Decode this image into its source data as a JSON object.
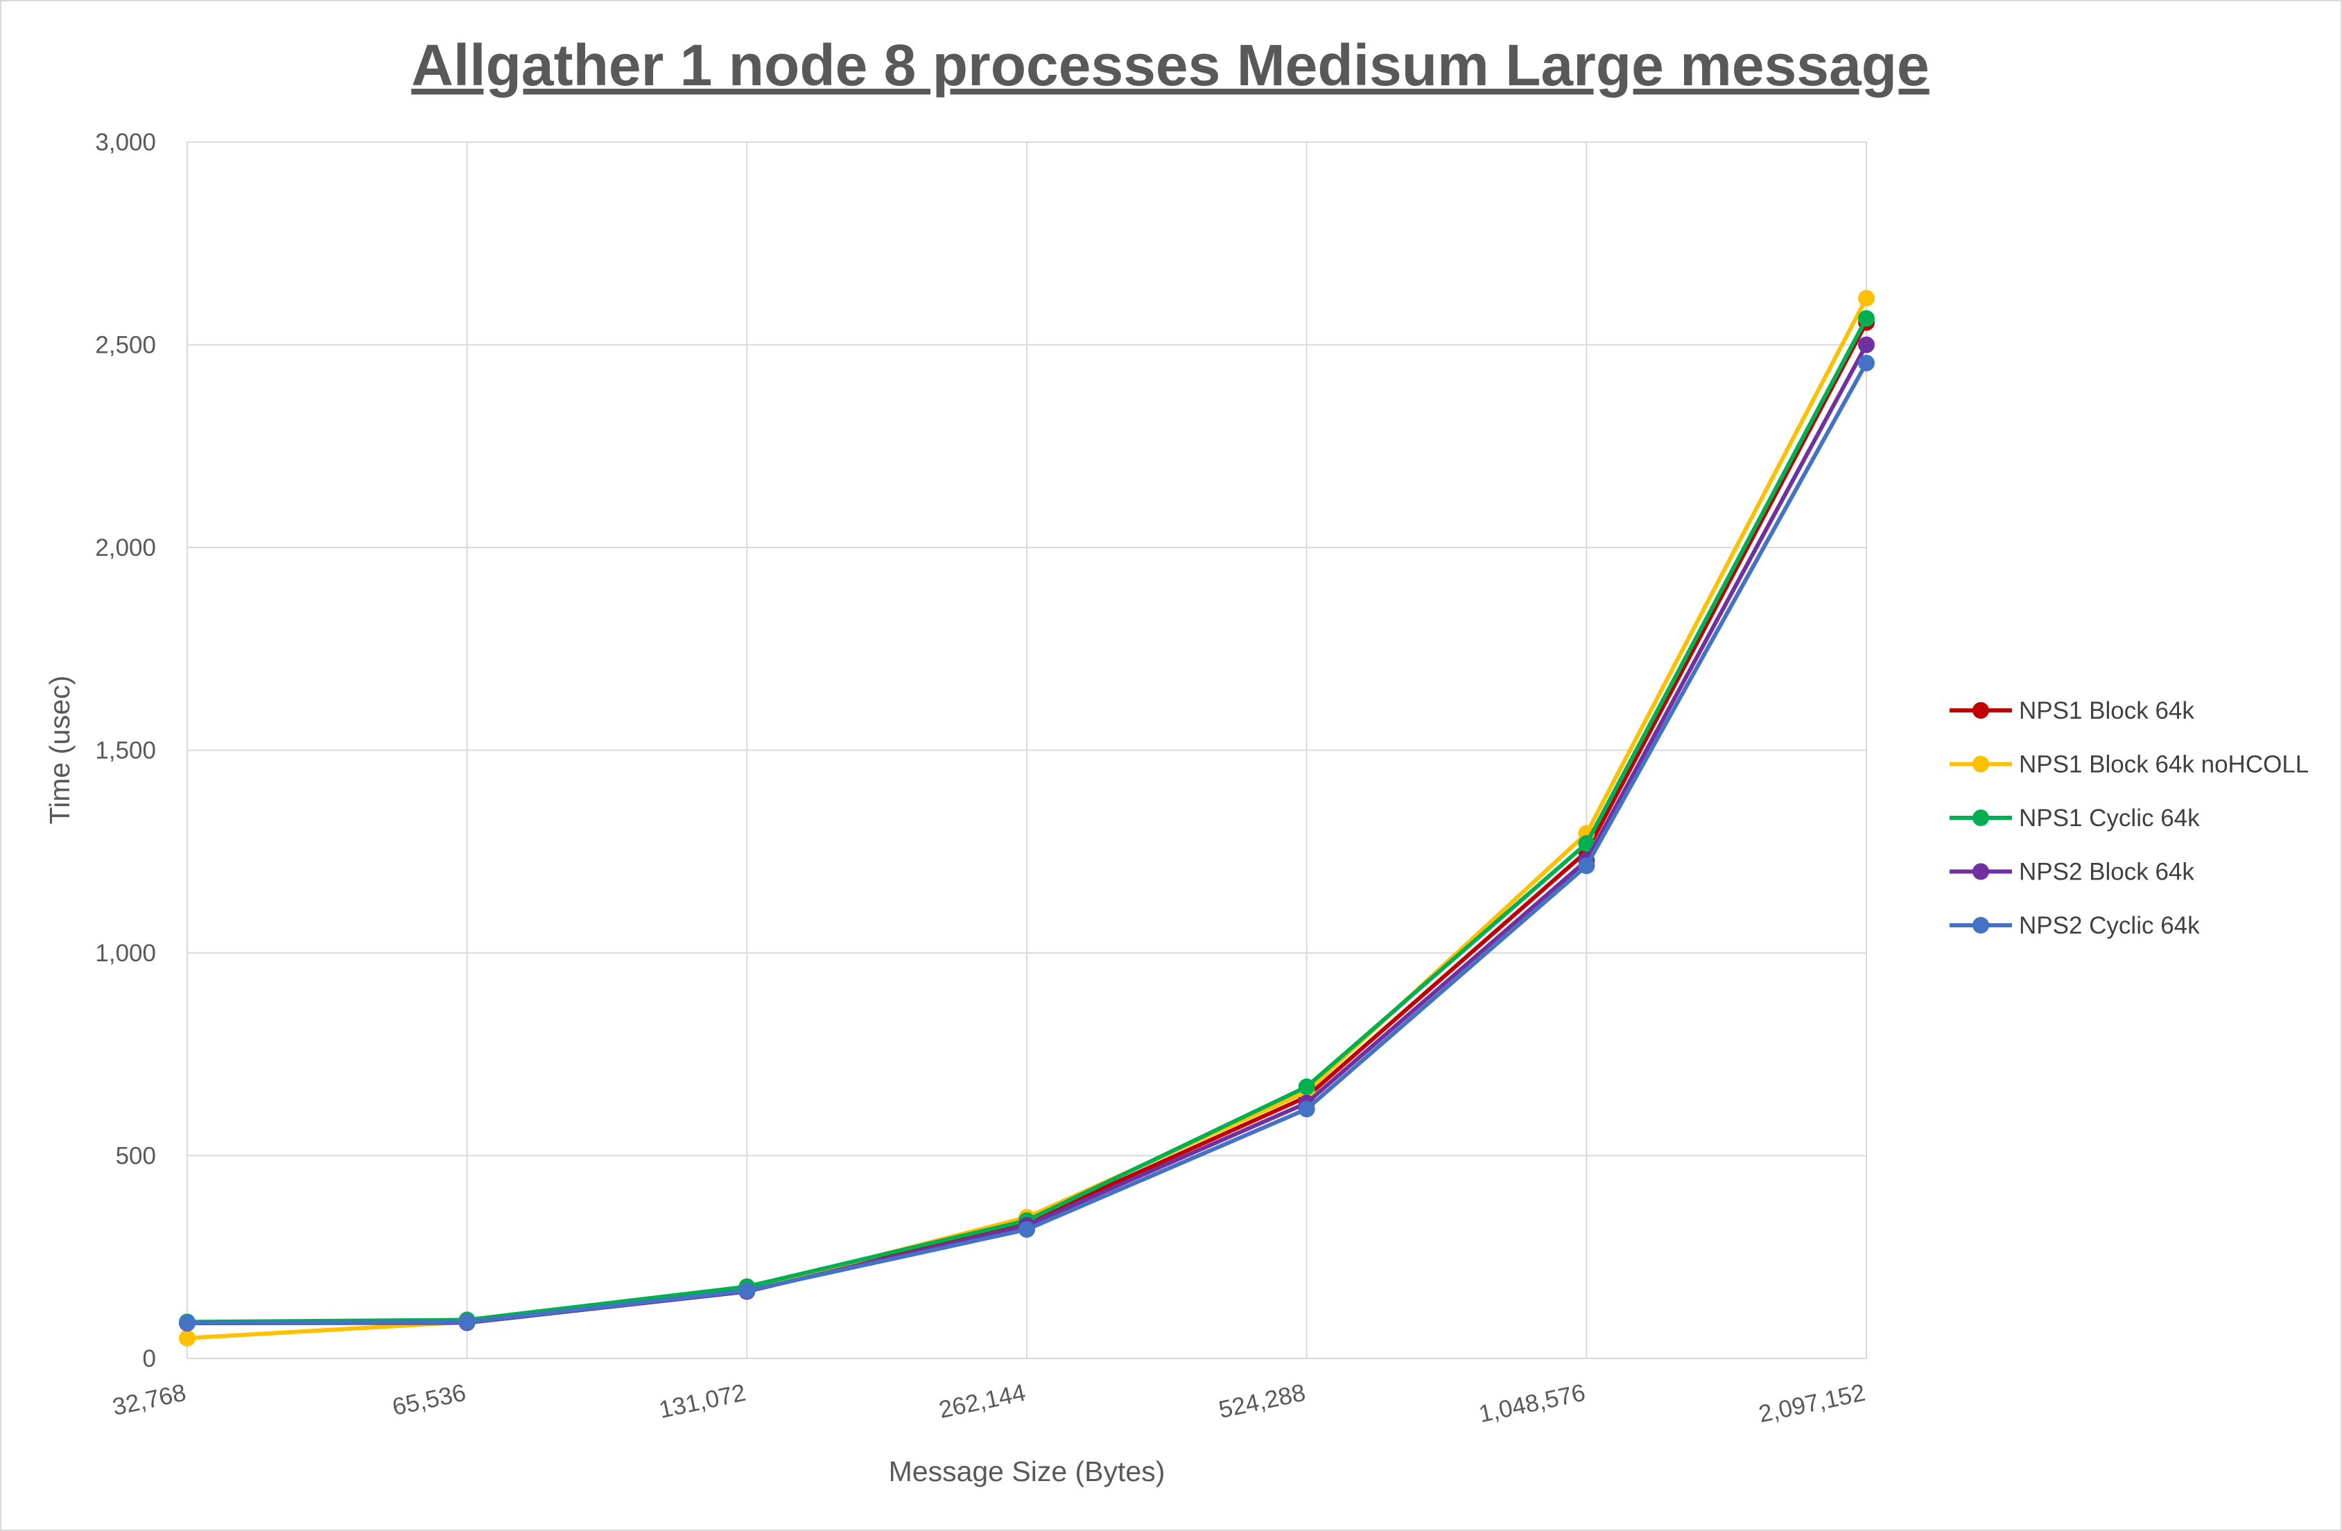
{
  "chart_data": {
    "type": "line",
    "title": "Allgather 1 node 8 processes Medisum Large message",
    "xlabel": "Message Size (Bytes)",
    "ylabel": "Time (usec)",
    "categories": [
      "32,768",
      "65,536",
      "131,072",
      "262,144",
      "524,288",
      "1,048,576",
      "2,097,152"
    ],
    "ylim": [
      0,
      3000
    ],
    "yticks": [
      "0",
      "500",
      "1,000",
      "1,500",
      "2,000",
      "2,500",
      "3,000"
    ],
    "grid": true,
    "legend_position": "right",
    "series": [
      {
        "name": "NPS1 Block 64k",
        "color": "#C00000",
        "values": [
          88,
          92,
          172,
          335,
          645,
          1250,
          2555
        ]
      },
      {
        "name": "NPS1 Block 64k noHCOLL",
        "color": "#FFC000",
        "values": [
          50,
          90,
          170,
          348,
          658,
          1295,
          2615
        ]
      },
      {
        "name": "NPS1 Cyclic 64k",
        "color": "#00B050",
        "values": [
          90,
          95,
          177,
          340,
          670,
          1270,
          2565
        ]
      },
      {
        "name": "NPS2 Block 64k",
        "color": "#7030A0",
        "values": [
          87,
          88,
          165,
          328,
          630,
          1228,
          2500
        ]
      },
      {
        "name": "NPS2 Cyclic 64k",
        "color": "#4472C4",
        "values": [
          88,
          90,
          167,
          318,
          615,
          1215,
          2455
        ]
      }
    ]
  }
}
